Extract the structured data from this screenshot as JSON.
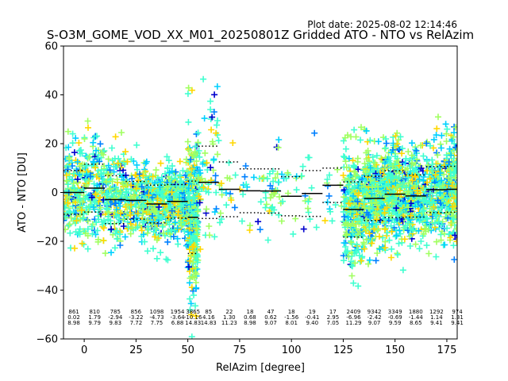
{
  "chart_data": {
    "type": "scatter",
    "title": "S-O3M_GOME_VOD_XX_M01_20250801Z Gridded ATO - NTO vs RelAzim",
    "plot_date": "Plot date: 2025-08-02 12:14:46",
    "xlabel": "RelAzim [degree]",
    "ylabel": "ATO - NTO [DU]",
    "xlim": [
      -10,
      180
    ],
    "ylim": [
      -60,
      60
    ],
    "xticks": [
      0,
      25,
      50,
      75,
      100,
      125,
      150,
      175
    ],
    "yticks": [
      -60,
      -40,
      -20,
      0,
      20,
      40,
      60
    ],
    "grid": false,
    "marker": "+",
    "colors": [
      "#0000cd",
      "#0080ff",
      "#00d0ff",
      "#40ffd0",
      "#a0ff60",
      "#ffd700"
    ],
    "bins": [
      {
        "x0": -10,
        "x1": 0,
        "center": -5,
        "count": "861",
        "mean": "0.02",
        "std": "8.98"
      },
      {
        "x0": 0,
        "x1": 10,
        "center": 5,
        "count": "810",
        "mean": "1.79",
        "std": "9.79"
      },
      {
        "x0": 10,
        "x1": 20,
        "center": 15,
        "count": "785",
        "mean": "-2.94",
        "std": "9.83"
      },
      {
        "x0": 20,
        "x1": 30,
        "center": 25,
        "count": "856",
        "mean": "-3.22",
        "std": "7.72"
      },
      {
        "x0": 30,
        "x1": 40,
        "center": 35,
        "count": "1098",
        "mean": "-4.73",
        "std": "7.75"
      },
      {
        "x0": 40,
        "x1": 50,
        "center": 45,
        "count": "1954",
        "mean": "-3.64",
        "std": "6.88"
      },
      {
        "x0": 50,
        "x1": 55,
        "center": 52.5,
        "count": "3865",
        "mean": "-10.16",
        "std": "14.83"
      },
      {
        "x0": 55,
        "x1": 65,
        "center": 60,
        "count": "85",
        "mean": "4.16",
        "std": "14.83"
      },
      {
        "x0": 65,
        "x1": 75,
        "center": 70,
        "count": "22",
        "mean": "1.30",
        "std": "11.23"
      },
      {
        "x0": 75,
        "x1": 85,
        "center": 80,
        "count": "18",
        "mean": "0.68",
        "std": "8.98"
      },
      {
        "x0": 85,
        "x1": 95,
        "center": 90,
        "count": "47",
        "mean": "0.62",
        "std": "9.07"
      },
      {
        "x0": 95,
        "x1": 105,
        "center": 100,
        "count": "18",
        "mean": "-1.56",
        "std": "8.01"
      },
      {
        "x0": 105,
        "x1": 115,
        "center": 110,
        "count": "19",
        "mean": "-0.41",
        "std": "9.40"
      },
      {
        "x0": 115,
        "x1": 125,
        "center": 120,
        "count": "17",
        "mean": "2.95",
        "std": "7.05"
      },
      {
        "x0": 125,
        "x1": 135,
        "center": 130,
        "count": "2409",
        "mean": "-6.96",
        "std": "11.29"
      },
      {
        "x0": 135,
        "x1": 145,
        "center": 140,
        "count": "9342",
        "mean": "-2.42",
        "std": "9.07"
      },
      {
        "x0": 145,
        "x1": 155,
        "center": 150,
        "count": "3349",
        "mean": "-0.69",
        "std": "9.59"
      },
      {
        "x0": 155,
        "x1": 165,
        "center": 160,
        "count": "1880",
        "mean": "-1.44",
        "std": "8.65"
      },
      {
        "x0": 165,
        "x1": 175,
        "center": 170,
        "count": "1292",
        "mean": "1.14",
        "std": "9.41"
      },
      {
        "x0": 175,
        "x1": 180,
        "center": 180,
        "count": "974",
        "mean": "1.31",
        "std": "9.41"
      }
    ]
  }
}
